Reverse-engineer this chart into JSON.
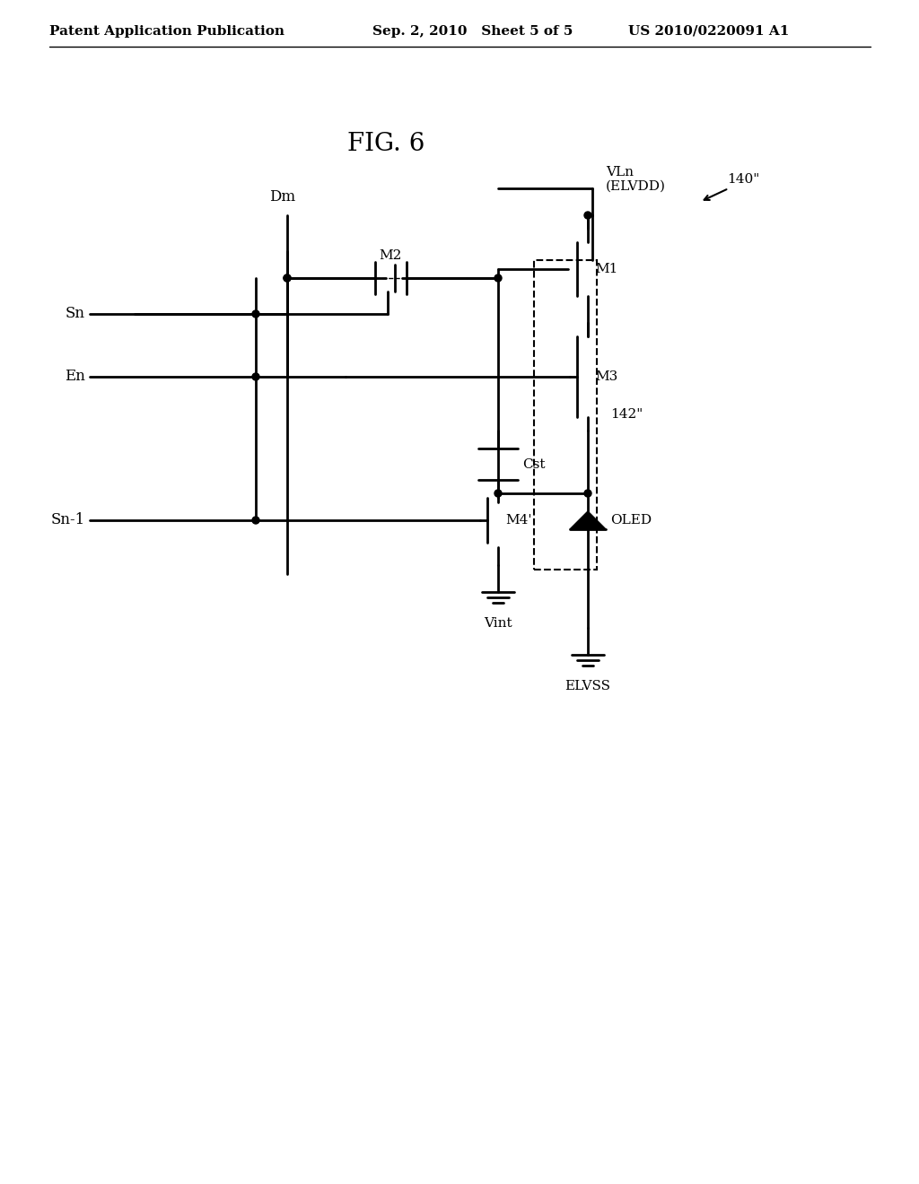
{
  "bg_color": "#ffffff",
  "line_color": "#000000",
  "header_left": "Patent Application Publication",
  "header_mid": "Sep. 2, 2010   Sheet 5 of 5",
  "header_right": "US 2010/0220091 A1",
  "fig_label": "FIG. 6",
  "label_140": "140\"",
  "label_142": "142\"",
  "label_Dm": "Dm",
  "label_Sn": "Sn",
  "label_En": "En",
  "label_Sn1": "Sn-1",
  "label_VLn": "VLn\n(ELVDD)",
  "label_M1": "M1",
  "label_M2": "M2",
  "label_M3": "M3",
  "label_M4": "M4'",
  "label_Cst": "Cst",
  "label_OLED": "OLED",
  "label_Vint": "Vint",
  "label_ELVSS": "ELVSS"
}
